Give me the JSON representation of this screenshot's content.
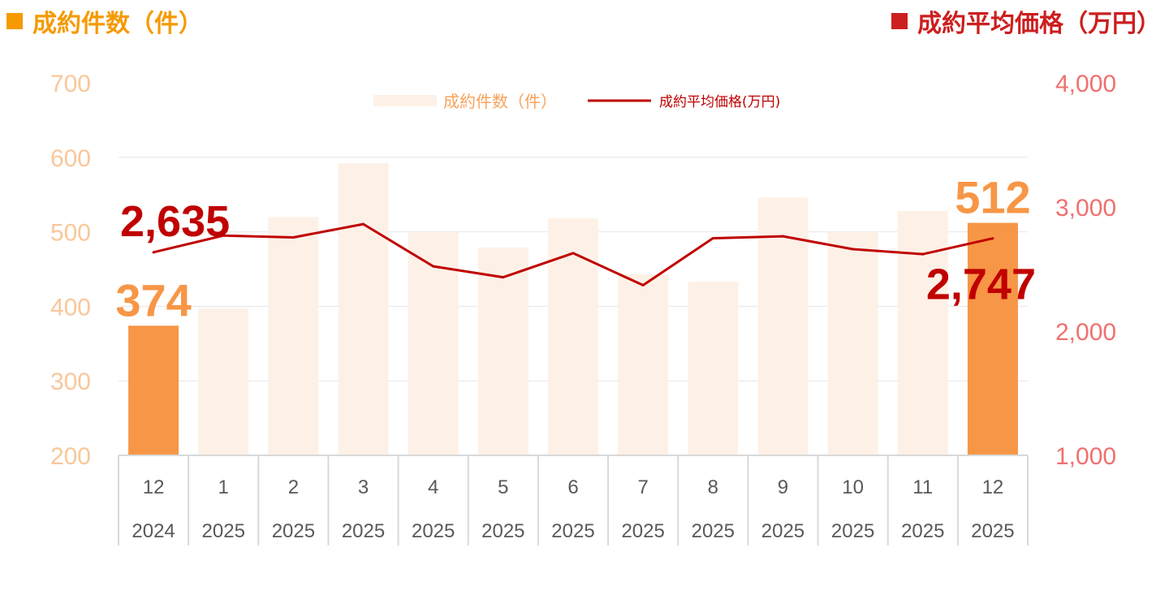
{
  "header": {
    "left_title": "成約件数（件）",
    "right_title": "成約平均価格（万円）"
  },
  "colors": {
    "left_header": "#f59a00",
    "right_header": "#cc1f1f",
    "bar_highlight": "#f79646",
    "bar_faded": "#fdf1e7",
    "line": "#c00000",
    "left_axis": "#f9c79a",
    "right_axis": "#f07070",
    "legend_bar_text": "#f7a35c",
    "legend_line_text": "#c00000",
    "grid": "#e6e6e6"
  },
  "chart_data": {
    "type": "bar+line",
    "categories": [
      {
        "month": "12",
        "year": "2024"
      },
      {
        "month": "1",
        "year": "2025"
      },
      {
        "month": "2",
        "year": "2025"
      },
      {
        "month": "3",
        "year": "2025"
      },
      {
        "month": "4",
        "year": "2025"
      },
      {
        "month": "5",
        "year": "2025"
      },
      {
        "month": "6",
        "year": "2025"
      },
      {
        "month": "7",
        "year": "2025"
      },
      {
        "month": "8",
        "year": "2025"
      },
      {
        "month": "9",
        "year": "2025"
      },
      {
        "month": "10",
        "year": "2025"
      },
      {
        "month": "11",
        "year": "2025"
      },
      {
        "month": "12",
        "year": "2025"
      }
    ],
    "left_axis": {
      "min": 200,
      "max": 700,
      "ticks": [
        "200",
        "300",
        "400",
        "500",
        "600",
        "700"
      ]
    },
    "right_axis": {
      "min": 1000,
      "max": 4000,
      "ticks": [
        "1,000",
        "2,000",
        "3,000",
        "4,000"
      ]
    },
    "bars": {
      "name": "成約件数（件）",
      "values": [
        374,
        397,
        520,
        592,
        499,
        479,
        518,
        443,
        433,
        546,
        500,
        528,
        512
      ],
      "highlighted": [
        true,
        false,
        false,
        false,
        false,
        false,
        false,
        false,
        false,
        false,
        false,
        false,
        true
      ]
    },
    "line": {
      "name": "成約平均価格(万円)",
      "values": [
        2635,
        2770,
        2755,
        2862,
        2522,
        2434,
        2628,
        2370,
        2748,
        2764,
        2660,
        2620,
        2747
      ]
    },
    "data_labels": [
      {
        "text": "374",
        "series": "bars",
        "index": 0
      },
      {
        "text": "512",
        "series": "bars",
        "index": 12
      },
      {
        "text": "2,635",
        "series": "line",
        "index": 0
      },
      {
        "text": "2,747",
        "series": "line",
        "index": 12
      }
    ],
    "legend": {
      "position": "top-center"
    },
    "grid": true
  }
}
